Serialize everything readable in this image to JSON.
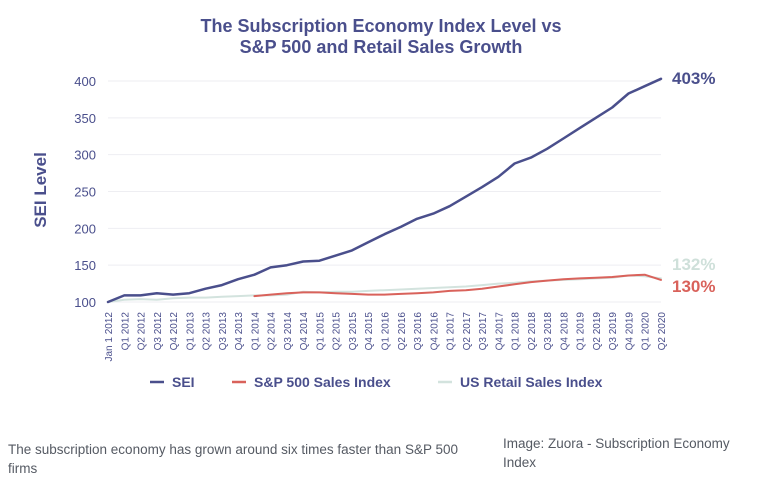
{
  "chart_data": {
    "type": "line",
    "title_line1": "The Subscription Economy Index Level vs",
    "title_line2": "S&P 500 and Retail Sales Growth",
    "ylabel": "SEI Level",
    "ylim": [
      100,
      405
    ],
    "yticks": [
      100,
      150,
      200,
      250,
      300,
      350,
      400
    ],
    "grid": true,
    "legend_position": "bottom",
    "categories": [
      "Jan 1 2012",
      "Q1 2012",
      "Q2 2012",
      "Q3 2012",
      "Q4 2012",
      "Q1 2013",
      "Q2 2013",
      "Q3 2013",
      "Q4 2013",
      "Q1 2014",
      "Q2 2014",
      "Q3 2014",
      "Q4 2014",
      "Q1 2015",
      "Q2 2015",
      "Q3 2015",
      "Q4 2015",
      "Q1 2016",
      "Q2 2016",
      "Q3 2016",
      "Q4 2016",
      "Q1 2017",
      "Q2 2017",
      "Q3 2017",
      "Q4 2017",
      "Q1 2018",
      "Q2 2018",
      "Q3 2018",
      "Q4 2018",
      "Q1 2019",
      "Q2 2019",
      "Q3 2019",
      "Q4 2019",
      "Q1 2020",
      "Q2 2020"
    ],
    "series": [
      {
        "name": "SEI",
        "color": "#4a4f8c",
        "values": [
          100,
          109,
          109,
          112,
          110,
          112,
          118,
          123,
          131,
          137,
          147,
          150,
          155,
          156,
          163,
          170,
          181,
          192,
          202,
          213,
          220,
          230,
          243,
          256,
          270,
          288,
          296,
          308,
          322,
          336,
          350,
          364,
          383,
          393,
          403
        ],
        "end_label": "403%"
      },
      {
        "name": "S&P 500 Sales Index",
        "color": "#d9625b",
        "values": [
          null,
          null,
          null,
          null,
          null,
          null,
          null,
          null,
          null,
          108,
          110,
          112,
          113,
          113,
          112,
          111,
          110,
          110,
          111,
          112,
          113,
          115,
          116,
          118,
          121,
          124,
          127,
          129,
          131,
          132,
          133,
          134,
          136,
          137,
          130
        ],
        "end_label": "130%"
      },
      {
        "name": "US Retail Sales Index",
        "color": "#d3e3de",
        "values": [
          100,
          103,
          104,
          103,
          105,
          106,
          106,
          107,
          108,
          109,
          109,
          110,
          114,
          113,
          114,
          114,
          115,
          116,
          117,
          118,
          119,
          120,
          121,
          123,
          125,
          126,
          128,
          129,
          130,
          131,
          132,
          133,
          136,
          135,
          132
        ],
        "end_label": "132%"
      }
    ]
  },
  "captions": {
    "left": "The subscription economy has grown around six times faster than S&P 500 firms",
    "right": "Image: Zuora - Subscription Economy Index"
  }
}
